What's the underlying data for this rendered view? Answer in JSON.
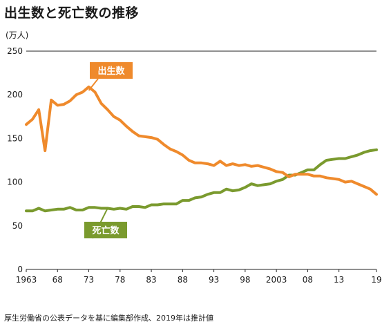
{
  "title": "出生数と死亡数の推移",
  "ylabel": "(万人)",
  "source_note": "厚生労働省の公表データを基に編集部作成、2019年は推計値",
  "chart_data": {
    "type": "line",
    "title": "出生数と死亡数の推移",
    "ylabel": "(万人)",
    "ylim": [
      0,
      250
    ],
    "yticks": [
      0,
      50,
      100,
      150,
      200,
      250
    ],
    "xlim": [
      1963,
      2019
    ],
    "xtick_values": [
      1963,
      1968,
      1973,
      1978,
      1983,
      1988,
      1993,
      1998,
      2003,
      2008,
      2013,
      2019
    ],
    "xtick_labels": [
      "1963",
      "68",
      "73",
      "78",
      "83",
      "88",
      "93",
      "98",
      "2003",
      "08",
      "13",
      "19"
    ],
    "grid": "horizontal-top-line-only",
    "x": [
      1963,
      1964,
      1965,
      1966,
      1967,
      1968,
      1969,
      1970,
      1971,
      1972,
      1973,
      1974,
      1975,
      1976,
      1977,
      1978,
      1979,
      1980,
      1981,
      1982,
      1983,
      1984,
      1985,
      1986,
      1987,
      1988,
      1989,
      1990,
      1991,
      1992,
      1993,
      1994,
      1995,
      1996,
      1997,
      1998,
      1999,
      2000,
      2001,
      2002,
      2003,
      2004,
      2005,
      2006,
      2007,
      2008,
      2009,
      2010,
      2011,
      2012,
      2013,
      2014,
      2015,
      2016,
      2017,
      2018,
      2019
    ],
    "series": [
      {
        "name": "出生数",
        "color": "#ef8a2c",
        "values": [
          166,
          172,
          183,
          136,
          194,
          188,
          189,
          193,
          200,
          203,
          209,
          203,
          190,
          183,
          175,
          171,
          164,
          158,
          153,
          152,
          151,
          149,
          143,
          138,
          135,
          131,
          125,
          122,
          122,
          121,
          119,
          124,
          119,
          121,
          119,
          120,
          118,
          119,
          117,
          115,
          112,
          111,
          106,
          109,
          109,
          109,
          107,
          107,
          105,
          104,
          103,
          100,
          101,
          98,
          95,
          92,
          86
        ]
      },
      {
        "name": "死亡数",
        "color": "#7a9a2e",
        "values": [
          67,
          67,
          70,
          67,
          68,
          69,
          69,
          71,
          68,
          68,
          71,
          71,
          70,
          70,
          69,
          70,
          69,
          72,
          72,
          71,
          74,
          74,
          75,
          75,
          75,
          79,
          79,
          82,
          83,
          86,
          88,
          88,
          92,
          90,
          91,
          94,
          98,
          96,
          97,
          98,
          101,
          103,
          108,
          108,
          111,
          114,
          114,
          120,
          125,
          126,
          127,
          127,
          129,
          131,
          134,
          136,
          137
        ]
      }
    ]
  }
}
